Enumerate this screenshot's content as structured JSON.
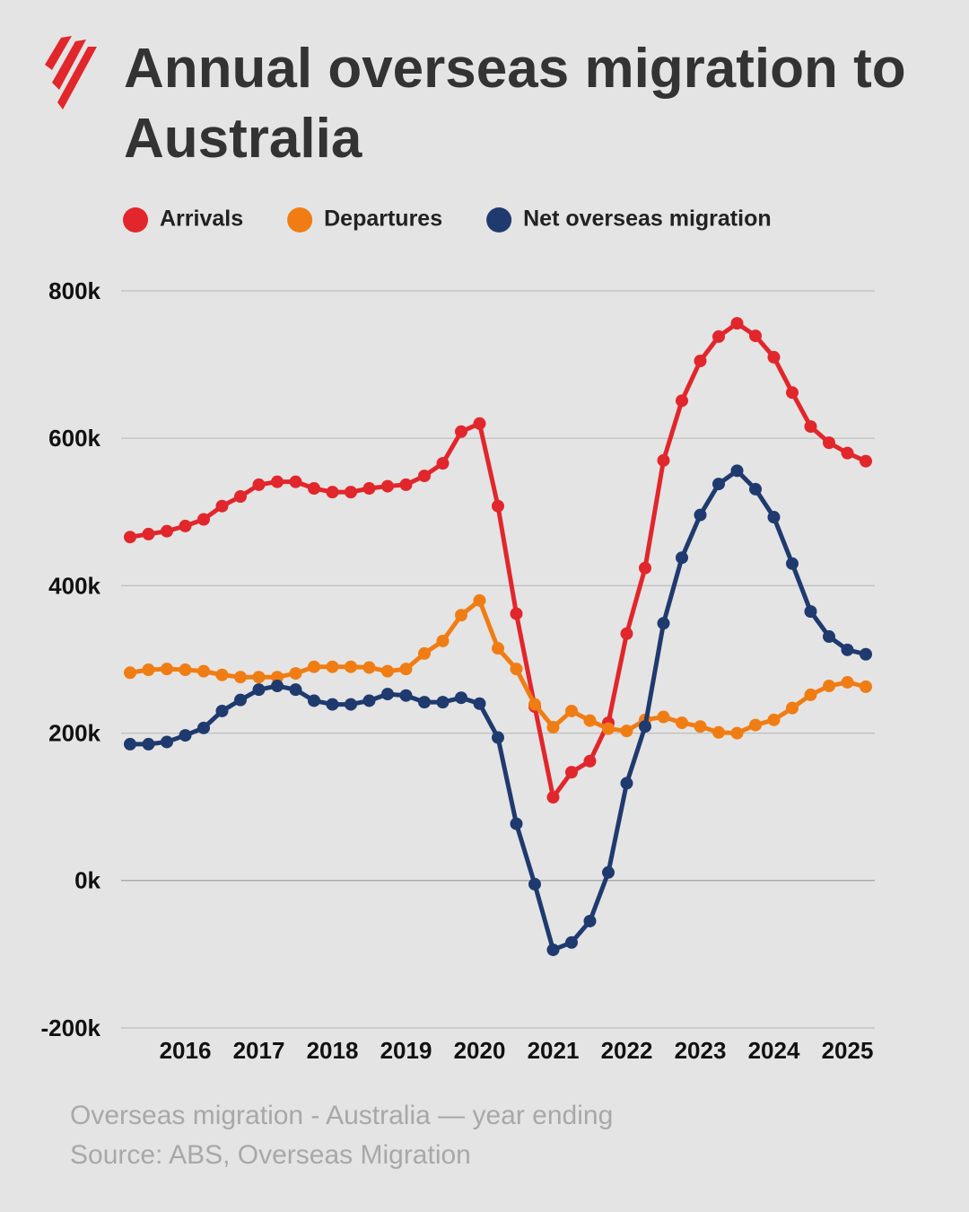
{
  "chart_data": {
    "type": "line",
    "title": "Annual overseas migration to Australia",
    "categories": [
      null,
      null,
      null,
      "2016",
      null,
      null,
      null,
      "2017",
      null,
      null,
      null,
      "2018",
      null,
      null,
      null,
      "2019",
      null,
      null,
      null,
      "2020",
      null,
      null,
      null,
      "2021",
      null,
      null,
      null,
      "2022",
      null,
      null,
      null,
      "2023",
      null,
      null,
      null,
      "2024",
      null,
      null,
      null,
      "2025",
      null
    ],
    "series": [
      {
        "name": "Arrivals",
        "color": "#e1262c",
        "values": [
          466,
          470,
          474,
          481,
          490,
          508,
          521,
          537,
          541,
          541,
          532,
          527,
          527,
          532,
          535,
          537,
          549,
          566,
          609,
          620,
          508,
          362,
          236,
          113,
          147,
          162,
          214,
          335,
          424,
          570,
          651,
          705,
          738,
          756,
          739,
          710,
          662,
          616,
          594,
          580,
          569
        ]
      },
      {
        "name": "Departures",
        "color": "#f07d14",
        "values": [
          282,
          286,
          287,
          286,
          284,
          279,
          276,
          276,
          276,
          281,
          290,
          290,
          290,
          289,
          284,
          287,
          308,
          325,
          360,
          380,
          315,
          287,
          239,
          208,
          230,
          217,
          206,
          203,
          218,
          222,
          214,
          209,
          201,
          200,
          211,
          218,
          234,
          252,
          264,
          269,
          263
        ]
      },
      {
        "name": "Net overseas migration",
        "color": "#1f3a6e",
        "values": [
          185,
          185,
          188,
          197,
          207,
          230,
          245,
          259,
          264,
          259,
          244,
          239,
          239,
          244,
          253,
          251,
          242,
          242,
          248,
          240,
          194,
          77,
          -5,
          -94,
          -84,
          -55,
          11,
          132,
          209,
          349,
          438,
          496,
          538,
          556,
          531,
          493,
          430,
          365,
          331,
          313,
          307
        ]
      }
    ],
    "ylim": [
      -200,
      800
    ],
    "yticks": [
      {
        "value": -200,
        "label": "-200k"
      },
      {
        "value": 0,
        "label": "0k"
      },
      {
        "value": 200,
        "label": "200k"
      },
      {
        "value": 400,
        "label": "400k"
      },
      {
        "value": 600,
        "label": "600k"
      },
      {
        "value": 800,
        "label": "800k"
      }
    ],
    "grid": true,
    "notes": [
      "Overseas migration - Australia — year ending",
      "Source: ABS, Overseas Migration"
    ]
  }
}
